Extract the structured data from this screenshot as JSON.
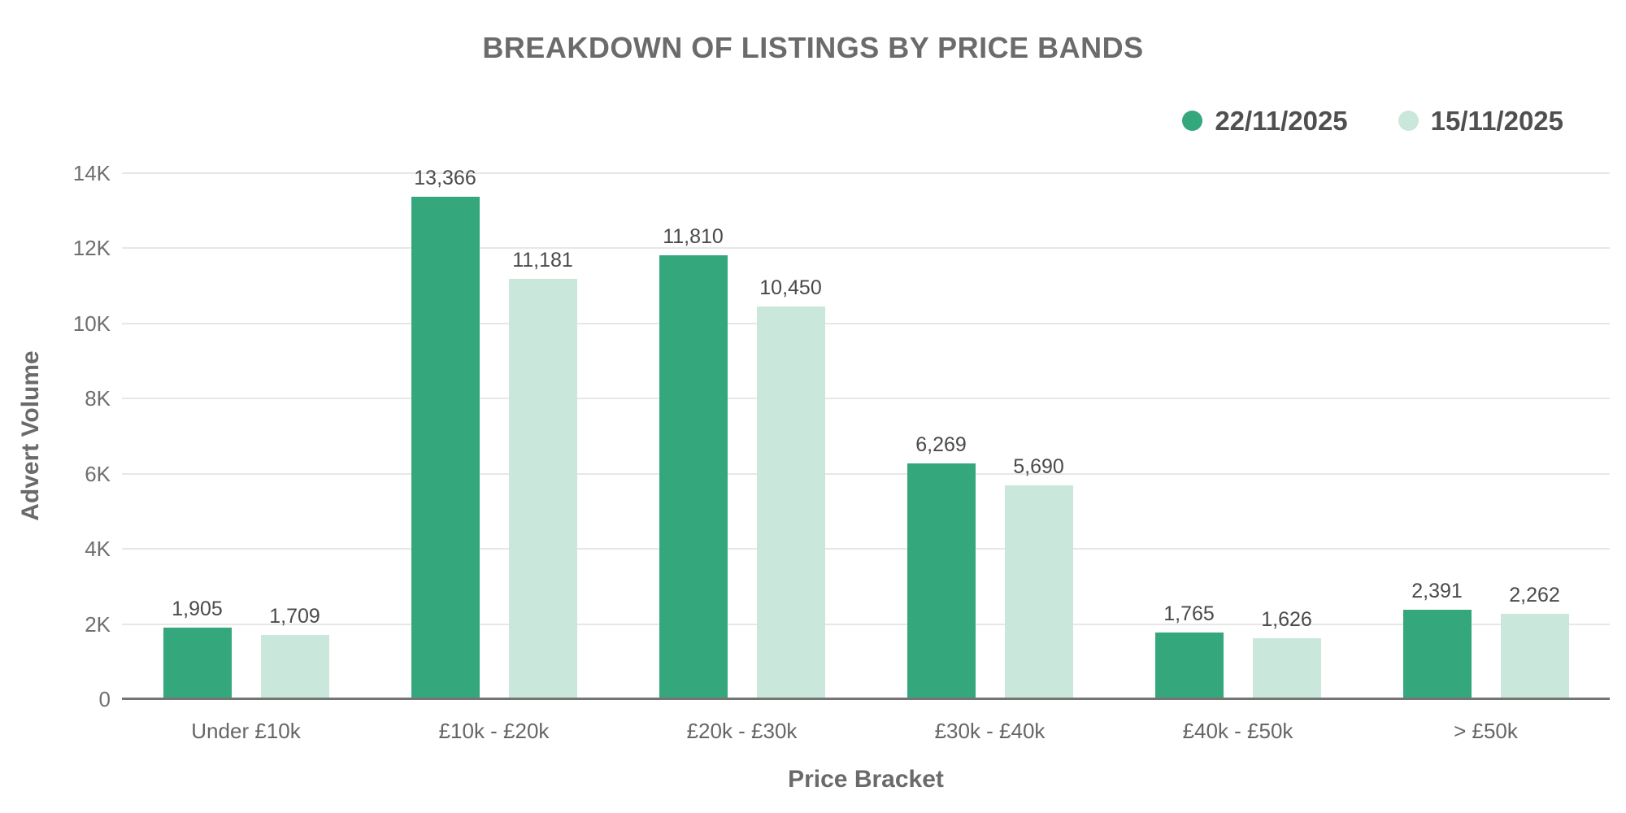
{
  "chart_data": {
    "type": "bar",
    "title": "BREAKDOWN OF LISTINGS BY PRICE BANDS",
    "xlabel": "Price Bracket",
    "ylabel": "Advert Volume",
    "categories": [
      "Under £10k",
      "£10k - £20k",
      "£20k - £30k",
      "£30k - £40k",
      "£40k - £50k",
      "> £50k"
    ],
    "series": [
      {
        "name": "22/11/2025",
        "color": "#34A87C",
        "values": [
          1905,
          13366,
          11810,
          6269,
          1765,
          2391
        ]
      },
      {
        "name": "15/11/2025",
        "color": "#C9E8DB",
        "values": [
          1709,
          11181,
          10450,
          5690,
          1626,
          2262
        ]
      }
    ],
    "value_labels": [
      "1,905",
      "13,366",
      "11,810",
      "6,269",
      "1,765",
      "2,391",
      "1,709",
      "11,181",
      "10,450",
      "5,690",
      "1,626",
      "2,262"
    ],
    "ylim": [
      0,
      14000
    ],
    "yticks": {
      "values": [
        0,
        2000,
        4000,
        6000,
        8000,
        10000,
        12000,
        14000
      ],
      "labels": [
        "0",
        "2K",
        "4K",
        "6K",
        "8K",
        "10K",
        "12K",
        "14K"
      ]
    },
    "grid": true,
    "legend_position": "top-right"
  },
  "colors": {
    "bar_series_1": "#34A87C",
    "bar_series_2": "#C9E8DB",
    "title_text": "#6B6B6B",
    "axis_title_text": "#6A6A6A",
    "tick_text": "#6F6F6F",
    "category_text": "#666666",
    "value_label_text": "#4A4A4A",
    "legend_text": "#4F4F4F",
    "gridline": "#E7E7E7",
    "axis_line": "#757575",
    "background": "#FFFFFF"
  }
}
